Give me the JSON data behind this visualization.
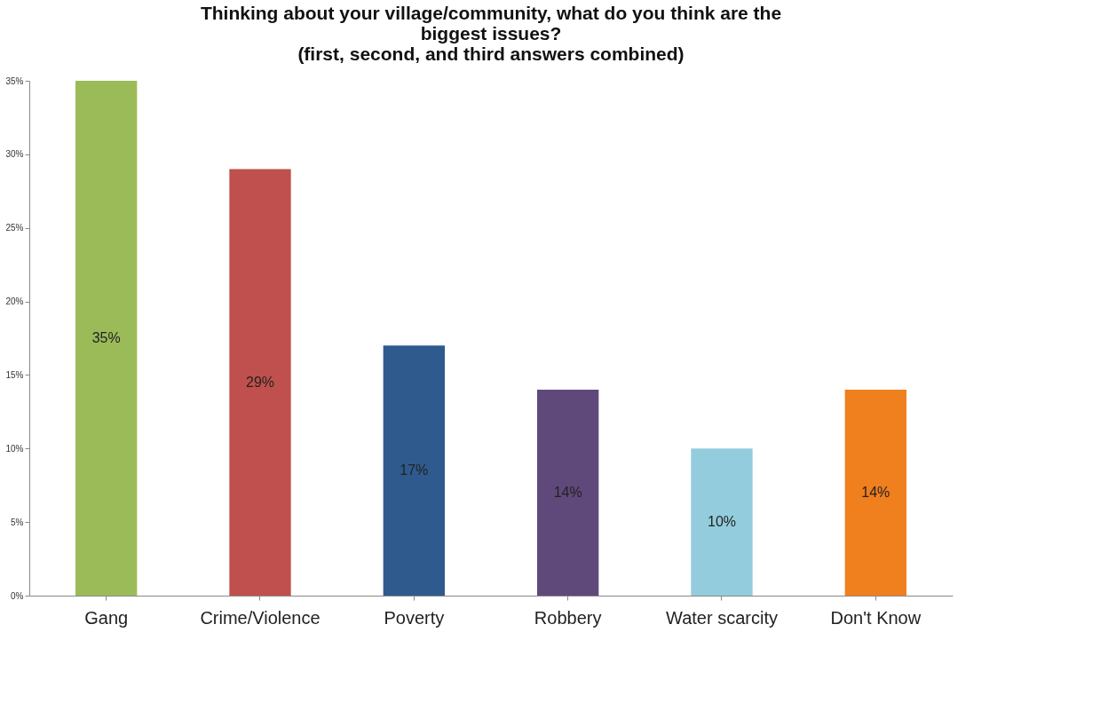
{
  "chart_data": {
    "type": "bar",
    "title": "Thinking about your village/community, what do you think are the\nbiggest issues?\n(first, second, and third answers combined)",
    "categories": [
      "Gang",
      "Crime/Violence",
      "Poverty",
      "Robbery",
      "Water scarcity",
      "Don't Know"
    ],
    "values": [
      35,
      29,
      17,
      14,
      10,
      14
    ],
    "colors": [
      "#9bbb59",
      "#c0504d",
      "#2f5a8e",
      "#5f497a",
      "#93cddd",
      "#f07f1e"
    ],
    "value_labels": [
      "35%",
      "29%",
      "17%",
      "14%",
      "10%",
      "14%"
    ],
    "ylim": [
      0,
      35
    ],
    "yticks": [
      {
        "value": 0,
        "label": "0%"
      },
      {
        "value": 5,
        "label": "5%"
      },
      {
        "value": 10,
        "label": "10%"
      },
      {
        "value": 15,
        "label": "15%"
      },
      {
        "value": 20,
        "label": "20%"
      },
      {
        "value": 25,
        "label": "25%"
      },
      {
        "value": 30,
        "label": "30%"
      },
      {
        "value": 35,
        "label": "35%"
      }
    ],
    "grid": false,
    "legend": false
  }
}
